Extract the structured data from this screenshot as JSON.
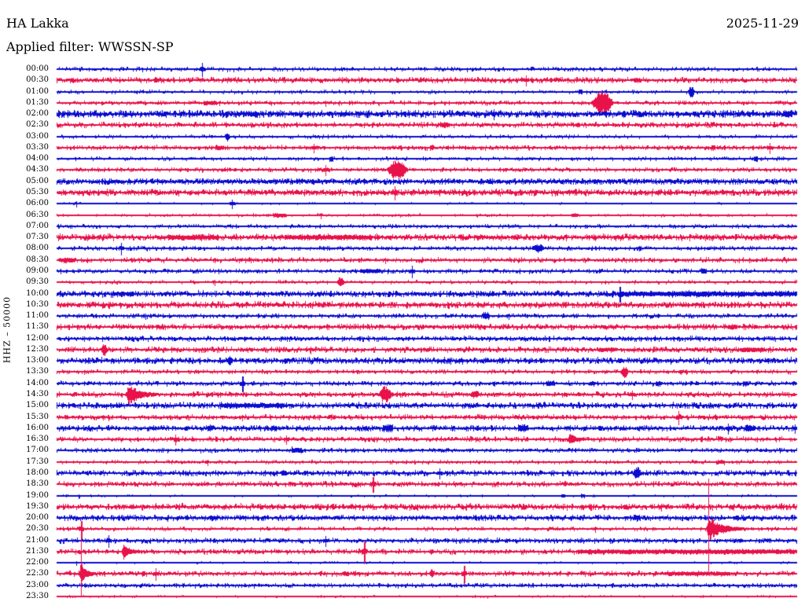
{
  "header": {
    "station": "HA Lakka",
    "date": "2025-11-29",
    "filter_label": "Applied filter: WWSSN-SP"
  },
  "y_axis_label": "HHZ – 50000",
  "colors": {
    "trace_blue": "#0b0bd0",
    "trace_red": "#e8114a",
    "text": "#000000",
    "background": "#ffffff"
  },
  "chart_data": {
    "type": "line",
    "subtype": "helicorder-seismogram",
    "station": "HA Lakka",
    "channel": "HHZ",
    "gain_scale": "50000",
    "date": "2025-11-29",
    "filter": "WWSSN-SP",
    "minutes_per_row": 30,
    "row_color_order": [
      "blue",
      "red"
    ],
    "rows": [
      {
        "time": "00:00",
        "color": "blue",
        "noise": 1.2,
        "density": 0.3,
        "events": [
          {
            "t": 5.9,
            "a": 8,
            "k": "spike"
          }
        ]
      },
      {
        "time": "00:30",
        "color": "red",
        "noise": 1.6,
        "density": 0.5,
        "events": [
          {
            "t": 0.6,
            "a": 3,
            "k": "burst",
            "d": 5
          },
          {
            "t": 4.0,
            "a": 3,
            "k": "burst",
            "d": 5
          },
          {
            "t": 19.0,
            "a": 6,
            "k": "spike"
          },
          {
            "t": 23.5,
            "a": 3,
            "k": "burst",
            "d": 8
          }
        ]
      },
      {
        "time": "01:00",
        "color": "blue",
        "noise": 1.0,
        "density": 0.25,
        "events": [
          {
            "t": 21.2,
            "a": 3,
            "k": "burst",
            "d": 4
          },
          {
            "t": 25.7,
            "a": 7,
            "k": "spindle",
            "d": 9
          }
        ]
      },
      {
        "time": "01:30",
        "color": "red",
        "noise": 1.2,
        "density": 0.35,
        "events": [
          {
            "t": 6.2,
            "a": 3,
            "k": "burst",
            "d": 16
          },
          {
            "t": 10.9,
            "a": 3,
            "k": "spike"
          },
          {
            "t": 22.1,
            "a": 15,
            "k": "spindle",
            "d": 30
          }
        ]
      },
      {
        "time": "02:00",
        "color": "blue",
        "noise": 2.0,
        "density": 0.75,
        "events": [
          {
            "t": 7.9,
            "a": 3.5,
            "k": "burst",
            "d": 10
          },
          {
            "t": 17.7,
            "a": 6,
            "k": "spike"
          },
          {
            "t": 29.6,
            "a": 4,
            "k": "burst",
            "d": 10
          }
        ]
      },
      {
        "time": "02:30",
        "color": "red",
        "noise": 1.5,
        "density": 0.45,
        "events": [
          {
            "t": 15.7,
            "a": 4,
            "k": "burst",
            "d": 10
          },
          {
            "t": 21.1,
            "a": 3,
            "k": "burst",
            "d": 5
          }
        ]
      },
      {
        "time": "03:00",
        "color": "blue",
        "noise": 1.0,
        "density": 0.22,
        "events": [
          {
            "t": 6.9,
            "a": 6,
            "k": "spindle",
            "d": 6
          }
        ]
      },
      {
        "time": "03:30",
        "color": "red",
        "noise": 1.3,
        "density": 0.4,
        "events": [
          {
            "t": 6.6,
            "a": 3,
            "k": "burst",
            "d": 10
          },
          {
            "t": 10.4,
            "a": 5,
            "k": "spike"
          },
          {
            "t": 15.2,
            "a": 3,
            "k": "burst",
            "d": 5
          },
          {
            "t": 26.6,
            "a": 3,
            "k": "burst",
            "d": 4
          },
          {
            "t": 28.9,
            "a": 6,
            "k": "spike"
          }
        ]
      },
      {
        "time": "04:00",
        "color": "blue",
        "noise": 1.0,
        "density": 0.28,
        "events": [
          {
            "t": 11.1,
            "a": 3,
            "k": "burst",
            "d": 5
          },
          {
            "t": 28.3,
            "a": 3,
            "k": "burst",
            "d": 4
          }
        ]
      },
      {
        "time": "04:30",
        "color": "red",
        "noise": 1.2,
        "density": 0.35,
        "events": [
          {
            "t": 10.9,
            "a": 6,
            "k": "spike"
          },
          {
            "t": 13.8,
            "a": 13,
            "k": "spindle",
            "d": 28
          }
        ]
      },
      {
        "time": "05:00",
        "color": "blue",
        "noise": 1.6,
        "density": 0.7,
        "events": []
      },
      {
        "time": "05:30",
        "color": "red",
        "noise": 1.8,
        "density": 0.65,
        "events": [
          {
            "t": 13.7,
            "a": 8,
            "k": "spike"
          }
        ]
      },
      {
        "time": "06:00",
        "color": "blue",
        "noise": 0.5,
        "density": 0.1,
        "events": [
          {
            "t": 0.8,
            "a": 3,
            "k": "spike"
          },
          {
            "t": 7.1,
            "a": 5,
            "k": "spike"
          }
        ]
      },
      {
        "time": "06:30",
        "color": "red",
        "noise": 0.8,
        "density": 0.18,
        "events": [
          {
            "t": 9.0,
            "a": 2.5,
            "k": "burst",
            "d": 16
          },
          {
            "t": 10.7,
            "a": 3,
            "k": "spike"
          },
          {
            "t": 21.0,
            "a": 2,
            "k": "burst",
            "d": 8
          }
        ]
      },
      {
        "time": "07:00",
        "color": "blue",
        "noise": 1.0,
        "density": 0.35,
        "events": []
      },
      {
        "time": "07:30",
        "color": "red",
        "noise": 1.8,
        "density": 0.65,
        "events": [
          {
            "t": 5.5,
            "a": 2.5,
            "k": "burst",
            "d": 60
          },
          {
            "t": 11.0,
            "a": 2.5,
            "k": "burst",
            "d": 110
          }
        ]
      },
      {
        "time": "08:00",
        "color": "blue",
        "noise": 1.2,
        "density": 0.35,
        "events": [
          {
            "t": 2.6,
            "a": 7,
            "k": "spike"
          },
          {
            "t": 19.5,
            "a": 5,
            "k": "spindle",
            "d": 18
          },
          {
            "t": 23.6,
            "a": 3,
            "k": "burst",
            "d": 4
          }
        ]
      },
      {
        "time": "08:30",
        "color": "red",
        "noise": 1.4,
        "density": 0.4,
        "events": [
          {
            "t": 0.4,
            "a": 2.5,
            "k": "burst",
            "d": 20
          },
          {
            "t": 13.3,
            "a": 3,
            "k": "spike"
          }
        ]
      },
      {
        "time": "09:00",
        "color": "blue",
        "noise": 1.2,
        "density": 0.35,
        "events": [
          {
            "t": 12.7,
            "a": 2.5,
            "k": "burst",
            "d": 25
          },
          {
            "t": 14.4,
            "a": 7,
            "k": "spike"
          },
          {
            "t": 26.2,
            "a": 4,
            "k": "burst",
            "d": 6
          }
        ]
      },
      {
        "time": "09:30",
        "color": "red",
        "noise": 1.0,
        "density": 0.25,
        "events": [
          {
            "t": 6.4,
            "a": 3,
            "k": "spike"
          },
          {
            "t": 11.5,
            "a": 6,
            "k": "spindle",
            "d": 10
          }
        ]
      },
      {
        "time": "10:00",
        "color": "blue",
        "noise": 1.8,
        "density": 0.6,
        "events": [
          {
            "t": 2.8,
            "a": 2.5,
            "k": "burst",
            "d": 20
          },
          {
            "t": 22.8,
            "a": 9,
            "k": "spike"
          },
          {
            "t": 26.4,
            "a": 2.5,
            "k": "burst",
            "d": 226
          }
        ]
      },
      {
        "time": "10:30",
        "color": "red",
        "noise": 1.8,
        "density": 0.6,
        "events": []
      },
      {
        "time": "11:00",
        "color": "blue",
        "noise": 1.2,
        "density": 0.4,
        "events": [
          {
            "t": 3.6,
            "a": 3,
            "k": "spike"
          },
          {
            "t": 17.4,
            "a": 4,
            "k": "burst",
            "d": 8
          },
          {
            "t": 18.3,
            "a": 3,
            "k": "spike"
          }
        ]
      },
      {
        "time": "11:30",
        "color": "red",
        "noise": 1.6,
        "density": 0.55,
        "events": [
          {
            "t": 27.4,
            "a": 3,
            "k": "burst",
            "d": 10
          }
        ]
      },
      {
        "time": "12:00",
        "color": "blue",
        "noise": 1.4,
        "density": 0.5,
        "events": []
      },
      {
        "time": "12:30",
        "color": "red",
        "noise": 1.6,
        "density": 0.5,
        "events": [
          {
            "t": 1.9,
            "a": 7,
            "k": "spindle",
            "d": 9
          },
          {
            "t": 10.3,
            "a": 4,
            "k": "spike"
          },
          {
            "t": 22.3,
            "a": 2.5,
            "k": "burst",
            "d": 20
          },
          {
            "t": 28.2,
            "a": 2.5,
            "k": "burst",
            "d": 30
          }
        ]
      },
      {
        "time": "13:00",
        "color": "blue",
        "noise": 1.8,
        "density": 0.6,
        "events": [
          {
            "t": 7.0,
            "a": 6,
            "k": "spindle",
            "d": 7
          },
          {
            "t": 15.9,
            "a": 3,
            "k": "burst",
            "d": 4
          },
          {
            "t": 22.8,
            "a": 3,
            "k": "burst",
            "d": 4
          }
        ]
      },
      {
        "time": "13:30",
        "color": "red",
        "noise": 1.2,
        "density": 0.35,
        "events": [
          {
            "t": 23.0,
            "a": 7,
            "k": "spindle",
            "d": 11
          },
          {
            "t": 25.3,
            "a": 3,
            "k": "burst",
            "d": 4
          }
        ]
      },
      {
        "time": "14:00",
        "color": "blue",
        "noise": 1.3,
        "density": 0.4,
        "events": [
          {
            "t": 7.5,
            "a": 9,
            "k": "spike"
          },
          {
            "t": 20.0,
            "a": 3,
            "k": "burst",
            "d": 10
          },
          {
            "t": 21.7,
            "a": 3,
            "k": "burst",
            "d": 5
          },
          {
            "t": 24.4,
            "a": 3,
            "k": "burst",
            "d": 7
          },
          {
            "t": 27.9,
            "a": 3,
            "k": "burst",
            "d": 7
          }
        ]
      },
      {
        "time": "14:30",
        "color": "red",
        "noise": 1.5,
        "density": 0.45,
        "events": [
          {
            "t": 2.9,
            "a": 14,
            "k": "quake",
            "d": 22
          },
          {
            "t": 13.3,
            "a": 11,
            "k": "spindle",
            "d": 18
          },
          {
            "t": 16.9,
            "a": 4,
            "k": "burst",
            "d": 8
          },
          {
            "t": 23.3,
            "a": 5,
            "k": "spike"
          }
        ]
      },
      {
        "time": "15:00",
        "color": "blue",
        "noise": 1.8,
        "density": 0.55,
        "events": [
          {
            "t": 7.9,
            "a": 2.5,
            "k": "burst",
            "d": 80
          }
        ]
      },
      {
        "time": "15:30",
        "color": "red",
        "noise": 1.4,
        "density": 0.45,
        "events": [
          {
            "t": 2.1,
            "a": 3,
            "k": "spike"
          },
          {
            "t": 7.5,
            "a": 3,
            "k": "spike"
          },
          {
            "t": 25.2,
            "a": 8,
            "k": "spike"
          }
        ]
      },
      {
        "time": "16:00",
        "color": "blue",
        "noise": 1.6,
        "density": 0.5,
        "events": [
          {
            "t": 6.2,
            "a": 4,
            "k": "burst",
            "d": 7
          },
          {
            "t": 8.8,
            "a": 4,
            "k": "burst",
            "d": 7
          },
          {
            "t": 13.4,
            "a": 5,
            "k": "burst",
            "d": 12
          },
          {
            "t": 18.9,
            "a": 5,
            "k": "burst",
            "d": 12
          },
          {
            "t": 22.0,
            "a": 3,
            "k": "burst",
            "d": 4
          },
          {
            "t": 27.2,
            "a": 6,
            "k": "spike"
          },
          {
            "t": 28.1,
            "a": 4,
            "k": "burst",
            "d": 12
          },
          {
            "t": 29.9,
            "a": 5,
            "k": "spike"
          }
        ]
      },
      {
        "time": "16:30",
        "color": "red",
        "noise": 1.4,
        "density": 0.45,
        "events": [
          {
            "t": 4.8,
            "a": 6,
            "k": "spike"
          },
          {
            "t": 9.3,
            "a": 5,
            "k": "spike"
          },
          {
            "t": 20.8,
            "a": 7,
            "k": "quake",
            "d": 12
          }
        ]
      },
      {
        "time": "17:00",
        "color": "blue",
        "noise": 1.2,
        "density": 0.4,
        "events": [
          {
            "t": 9.7,
            "a": 4,
            "k": "burst",
            "d": 12
          }
        ]
      },
      {
        "time": "17:30",
        "color": "red",
        "noise": 1.0,
        "density": 0.3,
        "events": [
          {
            "t": 6.1,
            "a": 3,
            "k": "spike"
          },
          {
            "t": 26.9,
            "a": 3,
            "k": "burst",
            "d": 8
          }
        ]
      },
      {
        "time": "18:00",
        "color": "blue",
        "noise": 1.6,
        "density": 0.5,
        "events": [
          {
            "t": 9.2,
            "a": 3,
            "k": "burst",
            "d": 6
          },
          {
            "t": 15.5,
            "a": 6,
            "k": "spike"
          },
          {
            "t": 23.5,
            "a": 8,
            "k": "spindle",
            "d": 11
          }
        ]
      },
      {
        "time": "18:30",
        "color": "red",
        "noise": 1.5,
        "density": 0.45,
        "events": [
          {
            "t": 12.8,
            "a": 9,
            "k": "spike"
          }
        ]
      },
      {
        "time": "19:00",
        "color": "blue",
        "noise": 0.6,
        "density": 0.12,
        "events": [
          {
            "t": 0.9,
            "a": 2,
            "k": "spike"
          },
          {
            "t": 20.5,
            "a": 2,
            "k": "burst",
            "d": 4
          },
          {
            "t": 21.3,
            "a": 2,
            "k": "burst",
            "d": 4
          }
        ]
      },
      {
        "time": "19:30",
        "color": "red",
        "noise": 1.8,
        "density": 0.6,
        "events": [
          {
            "t": 24.5,
            "a": 4,
            "k": "spike"
          }
        ]
      },
      {
        "time": "20:00",
        "color": "blue",
        "noise": 1.6,
        "density": 0.55,
        "events": [
          {
            "t": 6.3,
            "a": 3,
            "k": "burst",
            "d": 6
          },
          {
            "t": 23.5,
            "a": 4,
            "k": "burst",
            "d": 9
          },
          {
            "t": 27.5,
            "a": 3,
            "k": "burst",
            "d": 6
          }
        ]
      },
      {
        "time": "20:30",
        "color": "red",
        "noise": 1.1,
        "density": 0.3,
        "events": [
          {
            "t": 1.0,
            "a": 10,
            "k": "spike"
          },
          {
            "t": 21.8,
            "a": 3,
            "k": "spike"
          },
          {
            "t": 26.4,
            "a": 16,
            "k": "quake",
            "d": 26
          }
        ]
      },
      {
        "time": "21:00",
        "color": "blue",
        "noise": 1.4,
        "density": 0.45,
        "events": [
          {
            "t": 2.1,
            "a": 7,
            "k": "spike"
          },
          {
            "t": 10.9,
            "a": 6,
            "k": "spike"
          },
          {
            "t": 27.7,
            "a": 3,
            "k": "burst",
            "d": 5
          }
        ]
      },
      {
        "time": "21:30",
        "color": "red",
        "noise": 1.4,
        "density": 0.45,
        "events": [
          {
            "t": 2.7,
            "a": 10,
            "k": "quake",
            "d": 12
          },
          {
            "t": 12.45,
            "a": 12,
            "k": "spike"
          },
          {
            "t": 15.2,
            "a": 3,
            "k": "burst",
            "d": 4
          },
          {
            "t": 25.6,
            "a": 2.5,
            "k": "burst",
            "d": 280
          }
        ]
      },
      {
        "time": "22:00",
        "color": "blue",
        "noise": 0.5,
        "density": 0.1,
        "events": [
          {
            "t": 0.8,
            "a": 2,
            "k": "spike"
          }
        ]
      },
      {
        "time": "22:30",
        "color": "red",
        "noise": 1.4,
        "density": 0.45,
        "events": [
          {
            "t": 1.0,
            "a": 15,
            "k": "quake",
            "d": 10
          },
          {
            "t": 3.5,
            "a": 3,
            "k": "burst",
            "d": 5
          },
          {
            "t": 4.0,
            "a": 7,
            "k": "spike"
          },
          {
            "t": 11.7,
            "a": 3,
            "k": "burst",
            "d": 6
          },
          {
            "t": 15.2,
            "a": 5,
            "k": "spindle",
            "d": 7
          },
          {
            "t": 16.5,
            "a": 10,
            "k": "spike"
          },
          {
            "t": 26.0,
            "a": 2,
            "k": "burst",
            "d": 80
          }
        ]
      },
      {
        "time": "23:00",
        "color": "blue",
        "noise": 1.2,
        "density": 0.4,
        "events": []
      },
      {
        "time": "23:30",
        "color": "red",
        "noise": 0.6,
        "density": 0.12,
        "events": []
      }
    ],
    "tall_spikes": [
      {
        "time": "20:30",
        "t": 26.4,
        "up": 64,
        "down": 55
      },
      {
        "time": "21:30",
        "t": 12.45,
        "up": 14,
        "down": 16
      },
      {
        "time": "22:30",
        "t": 1.0,
        "up": 58,
        "down": 30
      }
    ]
  }
}
